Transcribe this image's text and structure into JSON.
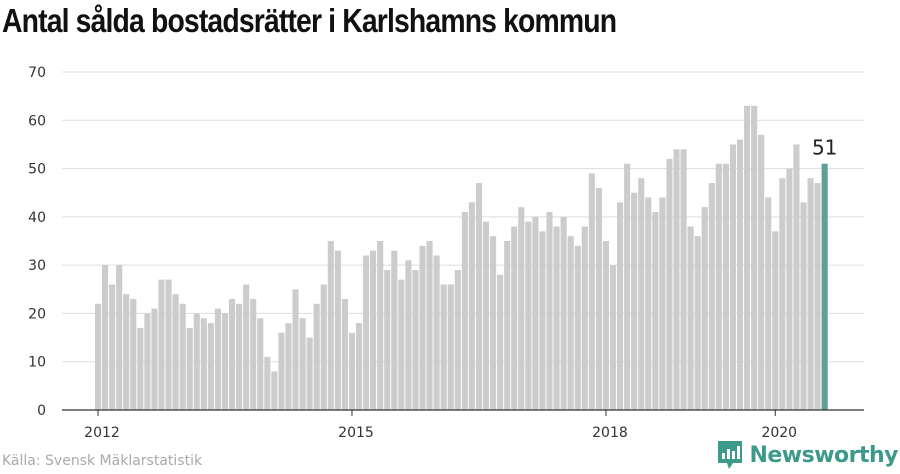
{
  "title": "Antal sålda bostadsrätter i Karlshamns kommun",
  "source": "Källa: Svensk Mäklarstatistik",
  "brand": {
    "name": "Newsworthy",
    "icon": "newsworthy-logo-icon"
  },
  "colors": {
    "bar": "#cccccc",
    "highlight": "#5ba196",
    "grid": "#dddddd",
    "axis": "#333333",
    "brand": "#3d9a8b"
  },
  "chart_data": {
    "type": "bar",
    "title": "Antal sålda bostadsrätter i Karlshamns kommun",
    "xlabel": "",
    "ylabel": "",
    "ylim": [
      0,
      70
    ],
    "yticks": [
      0,
      10,
      20,
      30,
      40,
      50,
      60,
      70
    ],
    "xticks": [
      {
        "label": "2012",
        "index": 0
      },
      {
        "label": "2015",
        "index": 36
      },
      {
        "label": "2018",
        "index": 72
      },
      {
        "label": "2020",
        "index": 96
      }
    ],
    "start": "2012-01",
    "interval": "month",
    "grid": true,
    "highlight_label": "51",
    "values": [
      22,
      30,
      26,
      30,
      24,
      23,
      17,
      20,
      21,
      27,
      27,
      24,
      22,
      17,
      20,
      19,
      18,
      21,
      20,
      23,
      22,
      26,
      23,
      19,
      11,
      8,
      16,
      18,
      25,
      19,
      15,
      22,
      26,
      35,
      33,
      23,
      16,
      18,
      32,
      33,
      35,
      29,
      33,
      27,
      31,
      29,
      34,
      35,
      32,
      26,
      26,
      29,
      41,
      43,
      47,
      39,
      36,
      28,
      35,
      38,
      42,
      39,
      40,
      37,
      41,
      38,
      40,
      36,
      34,
      38,
      49,
      46,
      35,
      30,
      43,
      51,
      45,
      48,
      44,
      41,
      44,
      52,
      54,
      54,
      38,
      36,
      42,
      47,
      51,
      51,
      55,
      56,
      63,
      63,
      57,
      44,
      37,
      48,
      50,
      55,
      43,
      48,
      47,
      51
    ]
  }
}
